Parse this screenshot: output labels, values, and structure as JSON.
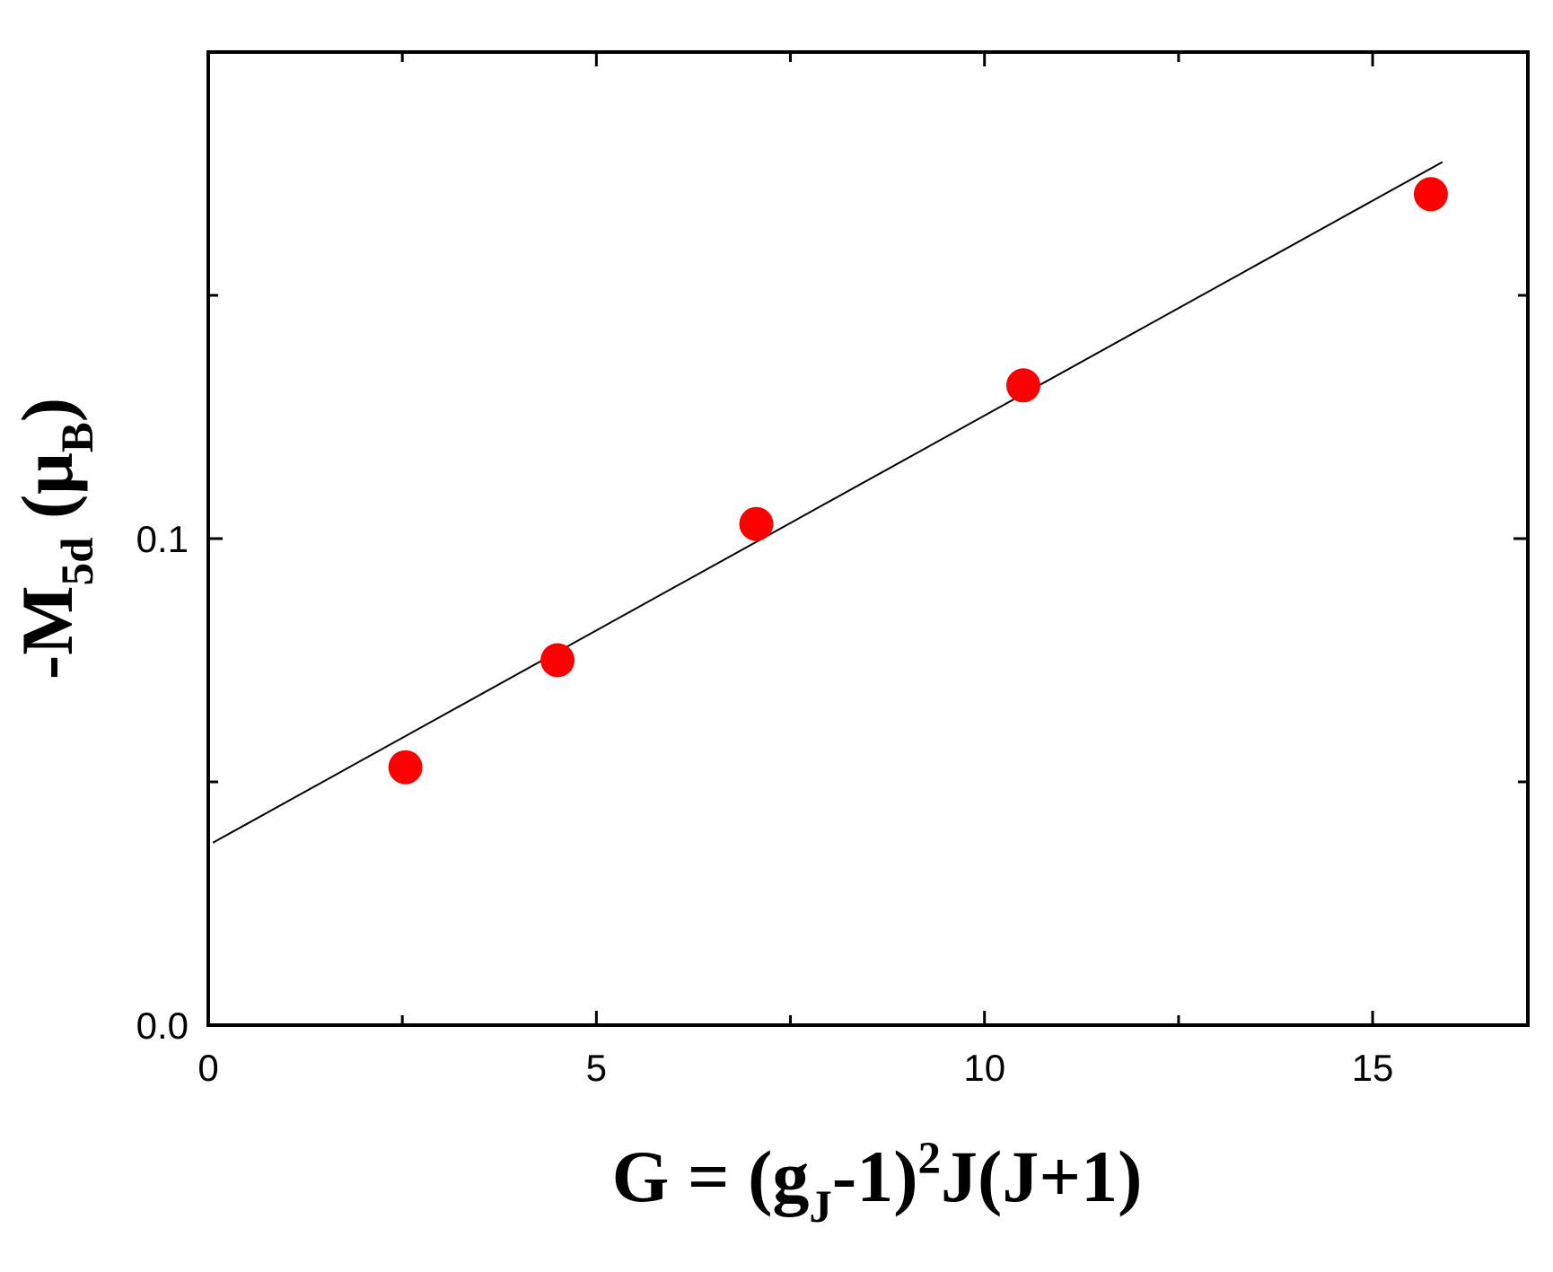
{
  "chart_data": {
    "type": "scatter",
    "title": "",
    "xlim": [
      0,
      17
    ],
    "ylim": [
      0.0,
      0.2
    ],
    "x_ticks": [
      0,
      5,
      10,
      15
    ],
    "x_tick_labels": [
      "0",
      "5",
      "10",
      "15"
    ],
    "x_minor_ticks": [
      2.5,
      7.5,
      12.5
    ],
    "y_ticks": [
      0.0,
      0.1
    ],
    "y_tick_labels": [
      "0.0",
      "0.1"
    ],
    "y_minor_ticks": [
      0.05,
      0.15
    ],
    "xlabel": {
      "parts": [
        {
          "t": "G = (g"
        },
        {
          "t": "J",
          "pos": "sub"
        },
        {
          "t": "-1)"
        },
        {
          "t": "2",
          "pos": "sup"
        },
        {
          "t": "J(J+1)"
        }
      ]
    },
    "ylabel": {
      "parts": [
        {
          "t": "-M"
        },
        {
          "t": "5d",
          "pos": "sub"
        },
        {
          "t": " (μ"
        },
        {
          "t": "B",
          "pos": "sub"
        },
        {
          "t": ")"
        }
      ]
    },
    "series": [
      {
        "type": "scatter",
        "color": "#ff0000",
        "points": [
          {
            "x": 2.54,
            "y": 0.053
          },
          {
            "x": 4.5,
            "y": 0.075
          },
          {
            "x": 7.06,
            "y": 0.103
          },
          {
            "x": 10.5,
            "y": 0.1315
          },
          {
            "x": 15.75,
            "y": 0.1708
          }
        ]
      },
      {
        "type": "line",
        "color": "#000000",
        "points": [
          {
            "x": 0.06,
            "y": 0.0375
          },
          {
            "x": 15.9,
            "y": 0.1774
          }
        ]
      }
    ],
    "grid": false,
    "legend": "none"
  }
}
